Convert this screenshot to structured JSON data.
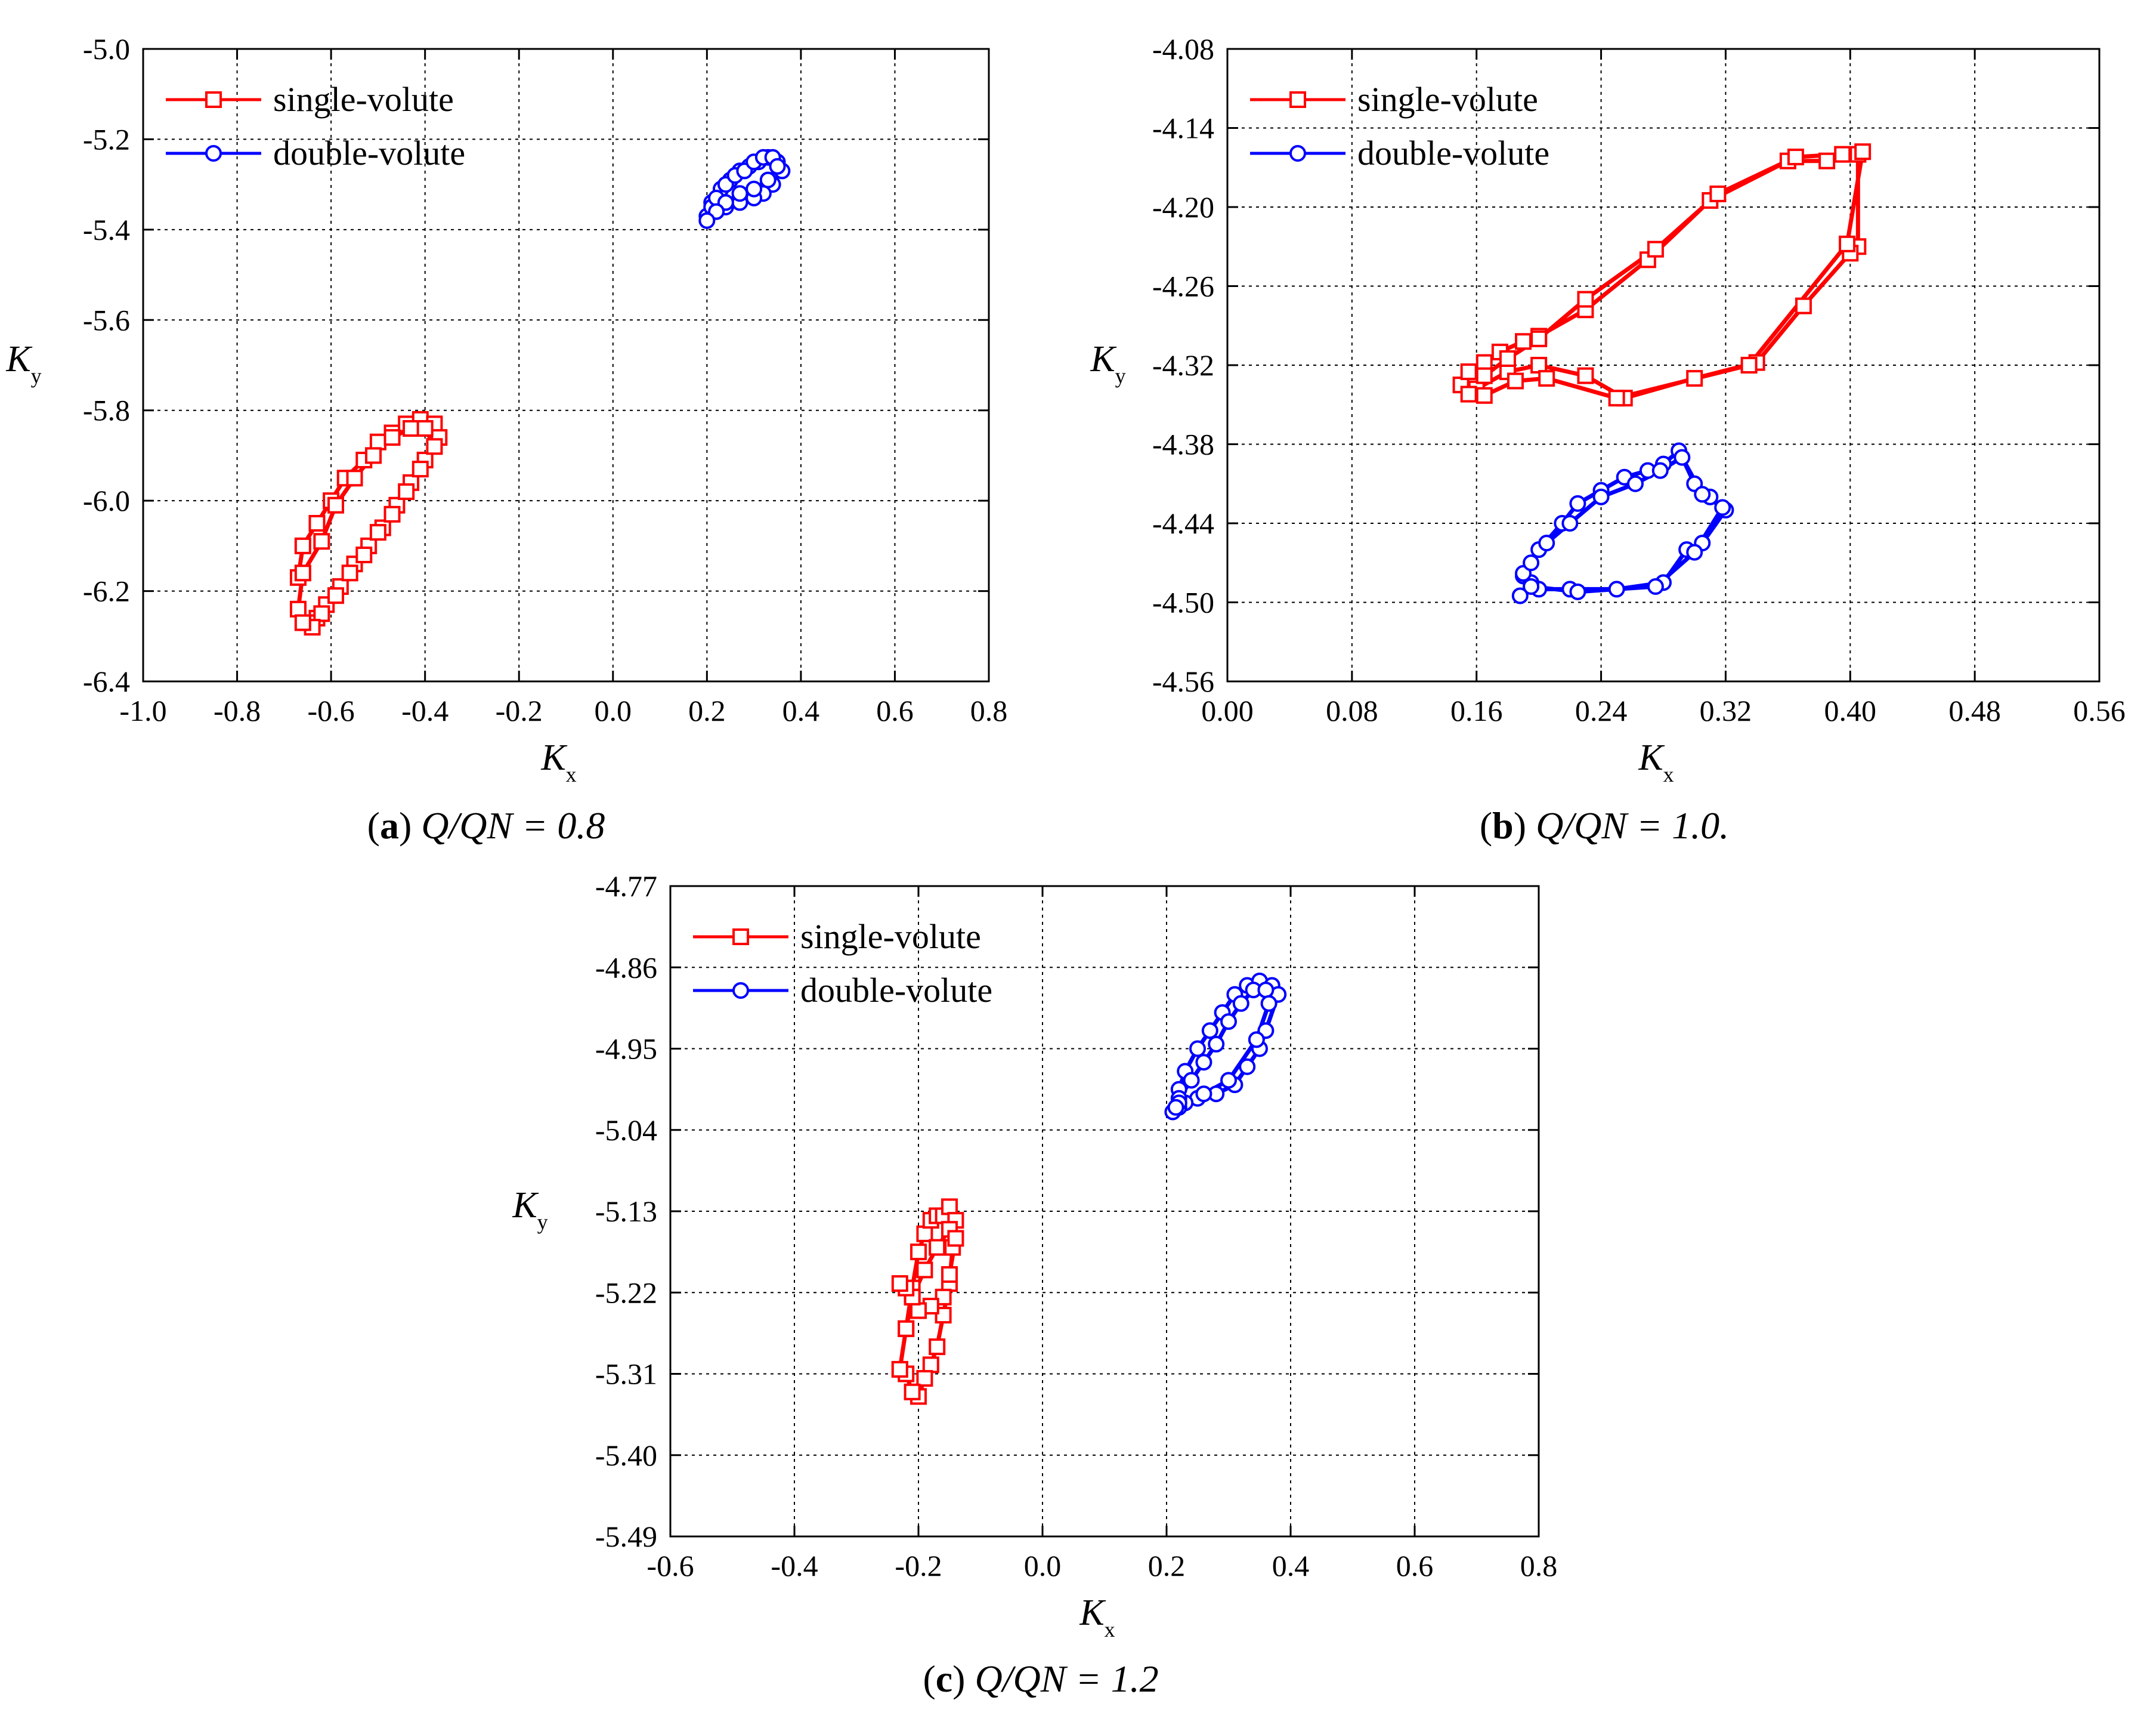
{
  "colors": {
    "single": "#ff0000",
    "double": "#0000ff",
    "axis": "#000000",
    "grid": "#000000"
  },
  "chart_data": [
    {
      "type": "line",
      "caption": {
        "letter": "a",
        "text": "Q/QN = 0.8"
      },
      "xlabel": "K",
      "xsub": "x",
      "ylabel": "K",
      "ysub": "y",
      "xlim": [
        -1.0,
        0.8
      ],
      "ylim": [
        -6.4,
        -5.0
      ],
      "xticks": [
        "-1.0",
        "-0.8",
        "-0.6",
        "-0.4",
        "-0.2",
        "0.0",
        "0.2",
        "0.4",
        "0.6",
        "0.8"
      ],
      "yticks": [
        "-5.0",
        "-5.2",
        "-5.4",
        "-5.6",
        "-5.8",
        "-6.0",
        "-6.2",
        "-6.4"
      ],
      "grid": true,
      "legend_position": "top-left",
      "series": [
        {
          "name": "single-volute",
          "marker": "square",
          "color": "#ff0000",
          "x": [
            -0.67,
            -0.66,
            -0.63,
            -0.6,
            -0.57,
            -0.53,
            -0.5,
            -0.47,
            -0.44,
            -0.41,
            -0.38,
            -0.37,
            -0.4,
            -0.43,
            -0.46,
            -0.49,
            -0.52,
            -0.55,
            -0.58,
            -0.61,
            -0.63,
            -0.65,
            -0.67,
            -0.66,
            -0.62,
            -0.59,
            -0.55,
            -0.51,
            -0.47,
            -0.43,
            -0.4,
            -0.38,
            -0.41,
            -0.44,
            -0.47,
            -0.5,
            -0.53,
            -0.56,
            -0.59,
            -0.62,
            -0.64,
            -0.66
          ],
          "y": [
            -6.17,
            -6.1,
            -6.05,
            -6.0,
            -5.95,
            -5.91,
            -5.87,
            -5.85,
            -5.83,
            -5.82,
            -5.83,
            -5.86,
            -5.91,
            -5.96,
            -6.01,
            -6.06,
            -6.1,
            -6.14,
            -6.19,
            -6.23,
            -6.26,
            -6.27,
            -6.24,
            -6.16,
            -6.09,
            -6.01,
            -5.95,
            -5.9,
            -5.86,
            -5.84,
            -5.84,
            -5.88,
            -5.93,
            -5.98,
            -6.03,
            -6.07,
            -6.12,
            -6.16,
            -6.21,
            -6.25,
            -6.28,
            -6.27
          ]
        },
        {
          "name": "double-volute",
          "marker": "circle",
          "color": "#0000ff",
          "x": [
            0.2,
            0.21,
            0.23,
            0.25,
            0.27,
            0.29,
            0.31,
            0.33,
            0.35,
            0.36,
            0.34,
            0.32,
            0.3,
            0.27,
            0.24,
            0.22,
            0.21,
            0.22,
            0.24,
            0.26,
            0.28,
            0.3,
            0.32,
            0.34,
            0.35,
            0.33,
            0.3,
            0.27,
            0.24,
            0.22,
            0.2
          ],
          "y": [
            -5.37,
            -5.34,
            -5.31,
            -5.29,
            -5.27,
            -5.26,
            -5.25,
            -5.24,
            -5.25,
            -5.27,
            -5.3,
            -5.32,
            -5.33,
            -5.34,
            -5.35,
            -5.36,
            -5.35,
            -5.33,
            -5.3,
            -5.28,
            -5.27,
            -5.25,
            -5.24,
            -5.24,
            -5.26,
            -5.29,
            -5.31,
            -5.32,
            -5.34,
            -5.36,
            -5.38
          ]
        }
      ]
    },
    {
      "type": "line",
      "caption": {
        "letter": "b",
        "text": "Q/QN = 1.0."
      },
      "xlabel": "K",
      "xsub": "x",
      "ylabel": "K",
      "ysub": "y",
      "xlim": [
        0.0,
        0.56
      ],
      "ylim": [
        -4.56,
        -4.08
      ],
      "xticks": [
        "0.00",
        "0.08",
        "0.16",
        "0.24",
        "0.32",
        "0.40",
        "0.48",
        "0.56"
      ],
      "yticks": [
        "-4.08",
        "-4.14",
        "-4.20",
        "-4.26",
        "-4.32",
        "-4.38",
        "-4.44",
        "-4.50",
        "-4.56"
      ],
      "grid": true,
      "legend_position": "top-left",
      "series": [
        {
          "name": "single-volute",
          "marker": "square",
          "color": "#ff0000",
          "x": [
            0.15,
            0.155,
            0.165,
            0.175,
            0.19,
            0.2,
            0.23,
            0.27,
            0.31,
            0.36,
            0.385,
            0.405,
            0.405,
            0.4,
            0.37,
            0.34,
            0.3,
            0.255,
            0.23,
            0.2,
            0.18,
            0.16,
            0.155,
            0.165,
            0.18,
            0.2,
            0.23,
            0.275,
            0.315,
            0.365,
            0.395,
            0.408,
            0.398,
            0.335,
            0.25,
            0.205,
            0.185,
            0.165
          ],
          "y": [
            -4.335,
            -4.325,
            -4.318,
            -4.31,
            -4.302,
            -4.298,
            -4.278,
            -4.24,
            -4.195,
            -4.165,
            -4.165,
            -4.16,
            -4.23,
            -4.235,
            -4.275,
            -4.318,
            -4.33,
            -4.345,
            -4.328,
            -4.32,
            -4.325,
            -4.338,
            -4.342,
            -4.328,
            -4.315,
            -4.3,
            -4.27,
            -4.232,
            -4.19,
            -4.162,
            -4.16,
            -4.158,
            -4.228,
            -4.32,
            -4.345,
            -4.33,
            -4.332,
            -4.343
          ]
        },
        {
          "name": "double-volute",
          "marker": "circle",
          "color": "#0000ff",
          "x": [
            0.19,
            0.2,
            0.215,
            0.225,
            0.24,
            0.255,
            0.27,
            0.28,
            0.29,
            0.3,
            0.31,
            0.32,
            0.305,
            0.295,
            0.28,
            0.25,
            0.22,
            0.2,
            0.195,
            0.19,
            0.195,
            0.205,
            0.22,
            0.24,
            0.262,
            0.278,
            0.292,
            0.305,
            0.318,
            0.3,
            0.275,
            0.225,
            0.195,
            0.188
          ],
          "y": [
            -4.48,
            -4.46,
            -4.44,
            -4.425,
            -4.415,
            -4.405,
            -4.4,
            -4.395,
            -4.385,
            -4.41,
            -4.42,
            -4.43,
            -4.455,
            -4.46,
            -4.485,
            -4.49,
            -4.49,
            -4.49,
            -4.485,
            -4.478,
            -4.47,
            -4.455,
            -4.44,
            -4.42,
            -4.41,
            -4.4,
            -4.39,
            -4.418,
            -4.428,
            -4.462,
            -4.488,
            -4.492,
            -4.488,
            -4.495
          ]
        }
      ]
    },
    {
      "type": "line",
      "caption": {
        "letter": "c",
        "text": "Q/QN = 1.2"
      },
      "xlabel": "K",
      "xsub": "x",
      "ylabel": "K",
      "ysub": "y",
      "xlim": [
        -0.6,
        0.8
      ],
      "ylim": [
        -5.49,
        -4.77
      ],
      "xticks": [
        "-0.6",
        "-0.4",
        "-0.2",
        "0.0",
        "0.2",
        "0.4",
        "0.6",
        "0.8"
      ],
      "yticks": [
        "-4.77",
        "-4.86",
        "-4.95",
        "-5.04",
        "-5.13",
        "-5.22",
        "-5.31",
        "-5.40",
        "-5.49"
      ],
      "grid": true,
      "legend_position": "top-left",
      "series": [
        {
          "name": "single-volute",
          "marker": "square",
          "color": "#ff0000",
          "x": [
            -0.23,
            -0.22,
            -0.21,
            -0.2,
            -0.19,
            -0.18,
            -0.17,
            -0.16,
            -0.15,
            -0.14,
            -0.145,
            -0.15,
            -0.16,
            -0.17,
            -0.18,
            -0.19,
            -0.2,
            -0.21,
            -0.22,
            -0.23,
            -0.22,
            -0.21,
            -0.19,
            -0.17,
            -0.15,
            -0.14,
            -0.15,
            -0.16,
            -0.18,
            -0.2,
            -0.21,
            -0.22,
            -0.23
          ],
          "y": [
            -5.305,
            -5.26,
            -5.215,
            -5.175,
            -5.155,
            -5.14,
            -5.135,
            -5.135,
            -5.125,
            -5.14,
            -5.17,
            -5.21,
            -5.245,
            -5.28,
            -5.3,
            -5.315,
            -5.335,
            -5.33,
            -5.31,
            -5.305,
            -5.26,
            -5.225,
            -5.195,
            -5.17,
            -5.15,
            -5.16,
            -5.2,
            -5.225,
            -5.235,
            -5.24,
            -5.225,
            -5.215,
            -5.21
          ]
        },
        {
          "name": "double-volute",
          "marker": "circle",
          "color": "#0000ff",
          "x": [
            0.21,
            0.22,
            0.23,
            0.25,
            0.27,
            0.29,
            0.31,
            0.33,
            0.35,
            0.37,
            0.38,
            0.36,
            0.35,
            0.33,
            0.31,
            0.28,
            0.25,
            0.23,
            0.22,
            0.22,
            0.24,
            0.26,
            0.28,
            0.3,
            0.32,
            0.34,
            0.36,
            0.365,
            0.345,
            0.3,
            0.26,
            0.22,
            0.215
          ],
          "y": [
            -5.02,
            -4.995,
            -4.975,
            -4.95,
            -4.93,
            -4.91,
            -4.89,
            -4.88,
            -4.875,
            -4.88,
            -4.89,
            -4.93,
            -4.95,
            -4.97,
            -4.99,
            -5.0,
            -5.005,
            -5.01,
            -5.015,
            -5.005,
            -4.985,
            -4.965,
            -4.945,
            -4.92,
            -4.9,
            -4.885,
            -4.885,
            -4.9,
            -4.94,
            -4.985,
            -5.0,
            -5.01,
            -5.015
          ]
        }
      ]
    }
  ]
}
